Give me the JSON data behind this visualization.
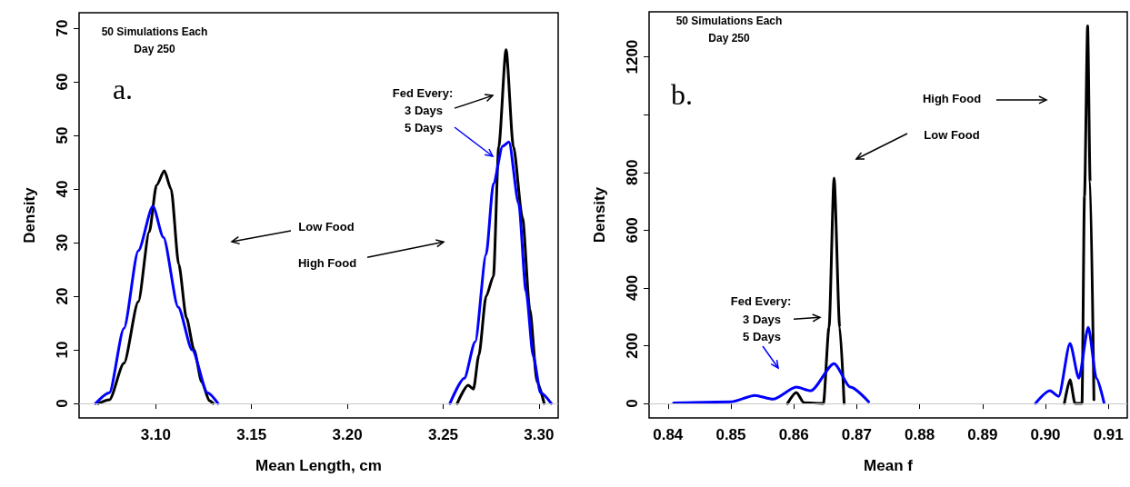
{
  "chart_data": [
    {
      "type": "line",
      "xlabel": "Mean Length, cm",
      "ylabel": "Density",
      "xlim": [
        3.06,
        3.31
      ],
      "ylim": [
        -2.7,
        72.9
      ],
      "xticks": [
        {
          "value": 3.1,
          "label": "3.10"
        },
        3.15,
        {
          "value": 3.2,
          "label": "3.20"
        },
        3.25,
        {
          "value": 3.3,
          "label": "3.30"
        }
      ],
      "yticks": [
        0,
        10,
        20,
        30,
        40,
        50,
        60,
        70
      ],
      "grid": false,
      "marker": "none",
      "line_style": "solid",
      "ref_lines": [
        {
          "axis": "y",
          "value": 0,
          "color": "#c8c8c8"
        }
      ],
      "annotations": [
        "50 Simulations Each",
        "Day 250",
        "a.",
        "Low Food",
        "High Food",
        "Fed Every:",
        "3 Days",
        "5 Days"
      ],
      "series": [
        {
          "color": "#000000",
          "x": [
            3.07,
            3.0758,
            3.0834,
            3.0909,
            3.0966,
            3.1004,
            3.1045,
            3.108,
            3.112,
            3.116,
            3.12,
            3.124,
            3.128,
            3.13,
            3.2,
            3.2573,
            3.263,
            3.2658,
            3.2686,
            3.2724,
            3.2762,
            3.279,
            3.2828,
            3.2866,
            3.2914,
            3.2952,
            3.299,
            3.3027
          ],
          "values": [
            0,
            0.7,
            7.5,
            19,
            32,
            40.7,
            43.4,
            40,
            26,
            16,
            10,
            4,
            0.5,
            0,
            null,
            0,
            3.4,
            2.7,
            9,
            20,
            23.7,
            48,
            66,
            48,
            34.6,
            17.6,
            4,
            0
          ]
        },
        {
          "color": "#0000ff",
          "x": [
            3.0686,
            3.0758,
            3.0834,
            3.0909,
            3.0985,
            3.104,
            3.1117,
            3.119,
            3.127,
            3.1325,
            3.2,
            3.2535,
            3.261,
            3.2667,
            3.2724,
            3.2762,
            3.281,
            3.2843,
            3.2894,
            3.2932,
            3.297,
            3.3008,
            3.3064
          ],
          "values": [
            0,
            2,
            14,
            28.5,
            36.8,
            31,
            18,
            10,
            2,
            0,
            null,
            0,
            4.7,
            11.5,
            27.8,
            41,
            48,
            48.8,
            37.3,
            21,
            8.8,
            2,
            0
          ]
        }
      ]
    },
    {
      "type": "line",
      "xlabel": "Mean f",
      "ylabel": "Density",
      "xlim": [
        0.837,
        0.913
      ],
      "ylim": [
        -50,
        1356
      ],
      "xticks": [
        0.84,
        0.85,
        0.86,
        0.87,
        0.88,
        0.89,
        {
          "value": 0.9,
          "label": "0.90"
        },
        0.91
      ],
      "yticks": [
        0,
        200,
        400,
        600,
        800,
        {
          "value": 1000,
          "label": null
        },
        1200
      ],
      "grid": false,
      "marker": "none",
      "line_style": "solid",
      "ref_lines": [
        {
          "axis": "y",
          "value": 0,
          "color": "#c8c8c8"
        }
      ],
      "annotations": [
        "50 Simulations Each",
        "Day 250",
        "b.",
        "High Food",
        "Low Food",
        "Fed Every:",
        "3 Days",
        "5 Days"
      ],
      "series": [
        {
          "color": "#000000",
          "x": [
            0.859,
            0.8604,
            0.8616,
            0.8647,
            0.8656,
            0.8664,
            0.8673,
            0.868,
            0.885,
            0.903,
            0.9039,
            0.9047,
            0.9058,
            0.9062,
            0.9067,
            0.9071,
            0.9077
          ],
          "values": [
            0,
            38,
            3,
            0,
            264,
            780,
            264,
            0,
            null,
            0,
            82,
            0,
            0,
            718,
            1307,
            768,
            13
          ]
        },
        {
          "color": "#0000ff",
          "x": [
            0.8409,
            0.8501,
            0.8538,
            0.8567,
            0.8604,
            0.8627,
            0.8664,
            0.869,
            0.8719,
            0.885,
            0.8984,
            0.9007,
            0.9021,
            0.9039,
            0.9053,
            0.9068,
            0.9081,
            0.9093
          ],
          "values": [
            2,
            6,
            28,
            15,
            57,
            44,
            138,
            57,
            6,
            null,
            0,
            44,
            25,
            208,
            88,
            264,
            88,
            3
          ]
        }
      ]
    }
  ]
}
